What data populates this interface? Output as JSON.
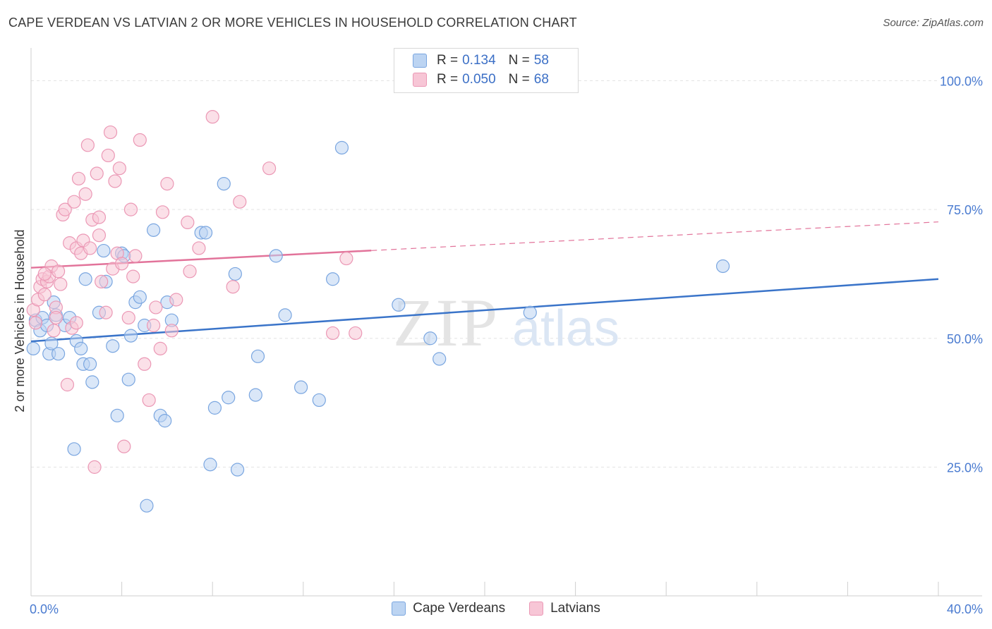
{
  "header": {
    "title": "CAPE VERDEAN VS LATVIAN 2 OR MORE VEHICLES IN HOUSEHOLD CORRELATION CHART",
    "source": "Source: ZipAtlas.com"
  },
  "watermark": {
    "zip": "ZIP",
    "atlas": "atlas"
  },
  "legend": {
    "rows": [
      {
        "r_label": "R =",
        "r_value": "0.134",
        "n_label": "N =",
        "n_value": "58"
      },
      {
        "r_label": "R =",
        "r_value": "0.050",
        "n_label": "N =",
        "n_value": "68"
      }
    ]
  },
  "colors": {
    "blue": "#3a74c9",
    "blue_fill": "#bcd4f2",
    "blue_stroke": "#7aa6e0",
    "pink": "#e2739a",
    "pink_fill": "#f7c6d6",
    "pink_stroke": "#eb98b5",
    "tick_text": "#4a7bd0"
  },
  "chart_data": {
    "type": "scatter",
    "title": "CAPE VERDEAN VS LATVIAN 2 OR MORE VEHICLES IN HOUSEHOLD CORRELATION CHART",
    "xlabel": "",
    "ylabel": "2 or more Vehicles in Household",
    "xlim": [
      0,
      40
    ],
    "ylim": [
      0,
      105
    ],
    "x_tick_labels": [
      {
        "value": 0,
        "label": "0.0%"
      },
      {
        "value": 40,
        "label": "40.0%"
      }
    ],
    "y_tick_labels": [
      {
        "value": 25,
        "label": "25.0%"
      },
      {
        "value": 50,
        "label": "50.0%"
      },
      {
        "value": 75,
        "label": "75.0%"
      },
      {
        "value": 100,
        "label": "100.0%"
      }
    ],
    "grid": true,
    "series": [
      {
        "name": "Cape Verdeans",
        "color": "#3a74c9",
        "trend": {
          "x0": 0,
          "y0": 49.4,
          "x1": 40,
          "y1": 61.5,
          "solid_until": 40
        },
        "points": [
          [
            0.1,
            48.0
          ],
          [
            0.2,
            53.5
          ],
          [
            0.4,
            51.5
          ],
          [
            0.5,
            54.0
          ],
          [
            0.7,
            52.5
          ],
          [
            0.8,
            47.0
          ],
          [
            0.9,
            49.0
          ],
          [
            1.0,
            57.0
          ],
          [
            1.1,
            54.5
          ],
          [
            1.2,
            47.0
          ],
          [
            1.5,
            52.5
          ],
          [
            1.7,
            54.0
          ],
          [
            1.9,
            28.5
          ],
          [
            2.0,
            49.5
          ],
          [
            2.2,
            48.0
          ],
          [
            2.3,
            45.0
          ],
          [
            2.4,
            61.5
          ],
          [
            2.6,
            45.0
          ],
          [
            2.7,
            41.5
          ],
          [
            3.0,
            55.0
          ],
          [
            3.2,
            67.0
          ],
          [
            3.3,
            61.0
          ],
          [
            3.6,
            48.5
          ],
          [
            3.8,
            35.0
          ],
          [
            4.0,
            66.5
          ],
          [
            4.1,
            66.0
          ],
          [
            4.3,
            42.0
          ],
          [
            4.4,
            50.5
          ],
          [
            4.6,
            57.0
          ],
          [
            4.8,
            58.0
          ],
          [
            5.0,
            52.5
          ],
          [
            5.1,
            17.5
          ],
          [
            5.4,
            71.0
          ],
          [
            5.7,
            35.0
          ],
          [
            5.9,
            34.0
          ],
          [
            6.0,
            57.0
          ],
          [
            6.2,
            53.5
          ],
          [
            7.5,
            70.5
          ],
          [
            7.7,
            70.5
          ],
          [
            7.9,
            25.5
          ],
          [
            8.1,
            36.5
          ],
          [
            8.5,
            80.0
          ],
          [
            8.7,
            38.5
          ],
          [
            9.0,
            62.5
          ],
          [
            9.1,
            24.5
          ],
          [
            9.9,
            39.0
          ],
          [
            10.0,
            46.5
          ],
          [
            10.8,
            66.0
          ],
          [
            11.2,
            54.5
          ],
          [
            11.9,
            40.5
          ],
          [
            12.7,
            38.0
          ],
          [
            13.3,
            61.5
          ],
          [
            13.7,
            87.0
          ],
          [
            16.2,
            56.5
          ],
          [
            17.6,
            50.0
          ],
          [
            18.0,
            46.0
          ],
          [
            22.0,
            55.0
          ],
          [
            30.5,
            64.0
          ]
        ]
      },
      {
        "name": "Latvians",
        "color": "#e2739a",
        "trend": {
          "x0": 0,
          "y0": 63.7,
          "x1": 40,
          "y1": 72.6,
          "solid_until": 15
        },
        "points": [
          [
            0.1,
            55.5
          ],
          [
            0.2,
            53.0
          ],
          [
            0.3,
            57.5
          ],
          [
            0.4,
            60.0
          ],
          [
            0.5,
            61.5
          ],
          [
            0.6,
            58.5
          ],
          [
            0.7,
            61.0
          ],
          [
            0.8,
            62.0
          ],
          [
            0.9,
            64.0
          ],
          [
            1.0,
            51.5
          ],
          [
            1.1,
            56.0
          ],
          [
            1.2,
            63.0
          ],
          [
            1.3,
            60.5
          ],
          [
            1.4,
            74.0
          ],
          [
            1.5,
            75.0
          ],
          [
            1.6,
            41.0
          ],
          [
            1.7,
            68.5
          ],
          [
            1.8,
            52.0
          ],
          [
            1.9,
            76.5
          ],
          [
            2.0,
            67.5
          ],
          [
            2.1,
            81.0
          ],
          [
            2.2,
            66.5
          ],
          [
            2.3,
            69.0
          ],
          [
            2.4,
            78.0
          ],
          [
            2.5,
            87.5
          ],
          [
            2.6,
            67.5
          ],
          [
            2.7,
            73.0
          ],
          [
            2.8,
            25.0
          ],
          [
            2.9,
            82.0
          ],
          [
            3.0,
            73.5
          ],
          [
            3.1,
            61.0
          ],
          [
            3.3,
            55.0
          ],
          [
            3.4,
            85.5
          ],
          [
            3.5,
            90.0
          ],
          [
            3.6,
            63.5
          ],
          [
            3.7,
            80.5
          ],
          [
            3.8,
            66.5
          ],
          [
            3.9,
            83.0
          ],
          [
            4.0,
            64.5
          ],
          [
            4.1,
            29.0
          ],
          [
            4.3,
            54.0
          ],
          [
            4.4,
            75.0
          ],
          [
            4.6,
            66.0
          ],
          [
            4.8,
            88.5
          ],
          [
            5.0,
            45.0
          ],
          [
            5.2,
            38.0
          ],
          [
            5.4,
            52.5
          ],
          [
            5.7,
            48.0
          ],
          [
            5.8,
            74.5
          ],
          [
            6.0,
            80.0
          ],
          [
            6.2,
            51.5
          ],
          [
            6.4,
            57.5
          ],
          [
            6.9,
            72.5
          ],
          [
            7.4,
            67.5
          ],
          [
            8.0,
            93.0
          ],
          [
            8.9,
            60.0
          ],
          [
            9.2,
            76.5
          ],
          [
            10.5,
            83.0
          ],
          [
            13.3,
            51.0
          ],
          [
            13.9,
            65.5
          ],
          [
            14.3,
            51.0
          ],
          [
            0.6,
            62.5
          ],
          [
            1.1,
            54.0
          ],
          [
            2.0,
            53.0
          ],
          [
            3.0,
            70.0
          ],
          [
            4.5,
            62.0
          ],
          [
            5.5,
            56.0
          ],
          [
            7.0,
            63.0
          ]
        ]
      }
    ]
  }
}
